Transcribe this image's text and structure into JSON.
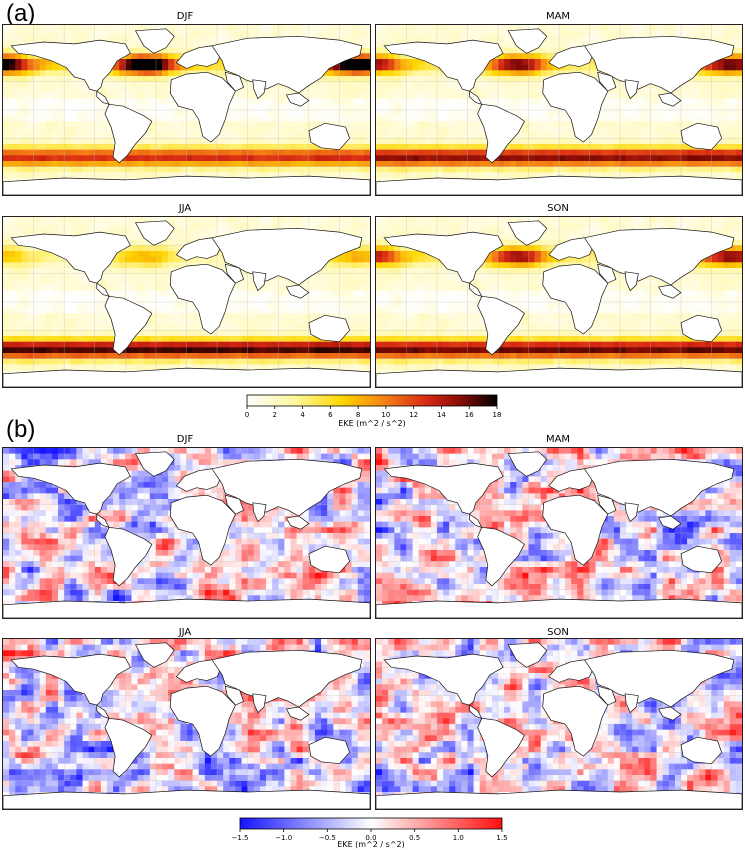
{
  "panel_a": {
    "label": "(a)",
    "maps": [
      {
        "title": "DJF"
      },
      {
        "title": "MAM"
      },
      {
        "title": "JJA"
      },
      {
        "title": "SON"
      }
    ],
    "colorbar": {
      "label": "EKE (m^2 / s^2)",
      "ticks": [
        "0",
        "2",
        "4",
        "6",
        "8",
        "10",
        "12",
        "14",
        "16",
        "18"
      ],
      "range": [
        0,
        18
      ],
      "colormap": "hot_r (white-yellow-orange-red-black)"
    }
  },
  "panel_b": {
    "label": "(b)",
    "maps": [
      {
        "title": "DJF"
      },
      {
        "title": "MAM"
      },
      {
        "title": "JJA"
      },
      {
        "title": "SON"
      }
    ],
    "colorbar": {
      "label": "EKE (m^2 / s^2)",
      "ticks": [
        "−1.5",
        "−1.0",
        "−0.5",
        "0.0",
        "0.5",
        "1.0",
        "1.5"
      ],
      "range": [
        -1.5,
        1.5
      ],
      "colormap": "bwr (blue-white-red)"
    }
  },
  "chart_data": [
    {
      "type": "heatmap",
      "panel": "(a)",
      "subplots": [
        "DJF",
        "MAM",
        "JJA",
        "SON"
      ],
      "colorbar_label": "EKE (m^2 / s^2)",
      "colorbar_range": [
        0,
        18
      ],
      "colorbar_ticks": [
        0,
        2,
        4,
        6,
        8,
        10,
        12,
        14,
        16,
        18
      ]
    },
    {
      "type": "heatmap",
      "panel": "(b)",
      "subplots": [
        "DJF",
        "MAM",
        "JJA",
        "SON"
      ],
      "colorbar_label": "EKE (m^2 / s^2)",
      "colorbar_range": [
        -1.5,
        1.5
      ],
      "colorbar_ticks": [
        -1.5,
        -1.0,
        -0.5,
        0.0,
        0.5,
        1.0,
        1.5
      ]
    }
  ]
}
